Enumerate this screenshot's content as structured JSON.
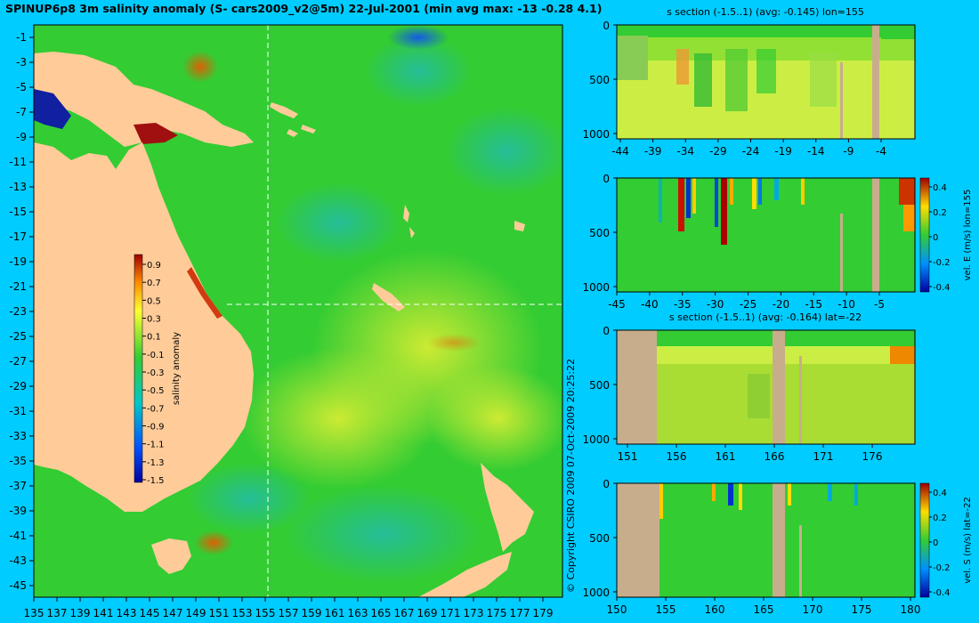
{
  "title": "SPINUP6p8 3m salinity anomaly (S- cars2009_v2@5m) 22-Jul-2001 (min avg max: -13 -0.28 4.1)",
  "map": {
    "lat_ticks": [
      "-1",
      "-3",
      "-5",
      "-7",
      "-9",
      "-11",
      "-13",
      "-15",
      "-17",
      "-19",
      "-21",
      "-23",
      "-25",
      "-27",
      "-29",
      "-31",
      "-33",
      "-35",
      "-37",
      "-39",
      "-41",
      "-43",
      "-45"
    ],
    "lon_ticks": [
      "135",
      "137",
      "139",
      "141",
      "143",
      "145",
      "147",
      "149",
      "151",
      "153",
      "155",
      "157",
      "159",
      "161",
      "163",
      "165",
      "167",
      "169",
      "171",
      "173",
      "175",
      "177",
      "179"
    ],
    "colorbar": {
      "label": "salinity anomaly",
      "ticks": [
        "0.9",
        "0.7",
        "0.5",
        "0.3",
        "0.1",
        "-0.1",
        "-0.3",
        "-0.5",
        "-0.7",
        "-0.9",
        "-1.1",
        "-1.3",
        "-1.5"
      ]
    },
    "section_lon": 155,
    "section_lat": -22
  },
  "copyright": "© Copyright CSIRO 2009   07-Oct-2009 20:25:22",
  "panels": [
    {
      "title": "s section (-1.5..1) (avg: -0.145) lon=155",
      "x_ticks": [
        "-44",
        "-39",
        "-34",
        "-29",
        "-24",
        "-19",
        "-14",
        "-9",
        "-4"
      ],
      "y_ticks": [
        "0",
        "500",
        "1000"
      ],
      "side_label": ""
    },
    {
      "title": "",
      "x_ticks": [
        "-45",
        "-40",
        "-35",
        "-30",
        "-25",
        "-20",
        "-15",
        "-10",
        "-5"
      ],
      "y_ticks": [
        "0",
        "500",
        "1000"
      ],
      "side_label": "vel. E (m/s) lon=155",
      "cbar_ticks": [
        "0.4",
        "0.2",
        "0",
        "-0.2",
        "-0.4"
      ]
    },
    {
      "title": "s section (-1.5..1) (avg: -0.164) lat=-22",
      "x_ticks": [
        "151",
        "156",
        "161",
        "166",
        "171",
        "176"
      ],
      "y_ticks": [
        "0",
        "500",
        "1000"
      ],
      "side_label": ""
    },
    {
      "title": "",
      "x_ticks": [
        "150",
        "155",
        "160",
        "165",
        "170",
        "175",
        "180"
      ],
      "y_ticks": [
        "0",
        "500",
        "1000"
      ],
      "side_label": "vel. S (m/s) lat=-22",
      "cbar_ticks": [
        "0.4",
        "0.2",
        "0",
        "-0.2",
        "-0.4"
      ]
    }
  ],
  "colors": {
    "background": "#00ccff",
    "land": "#ffcc99",
    "section_land": "#c8ad8c",
    "ocean_base": "#33cc33"
  }
}
